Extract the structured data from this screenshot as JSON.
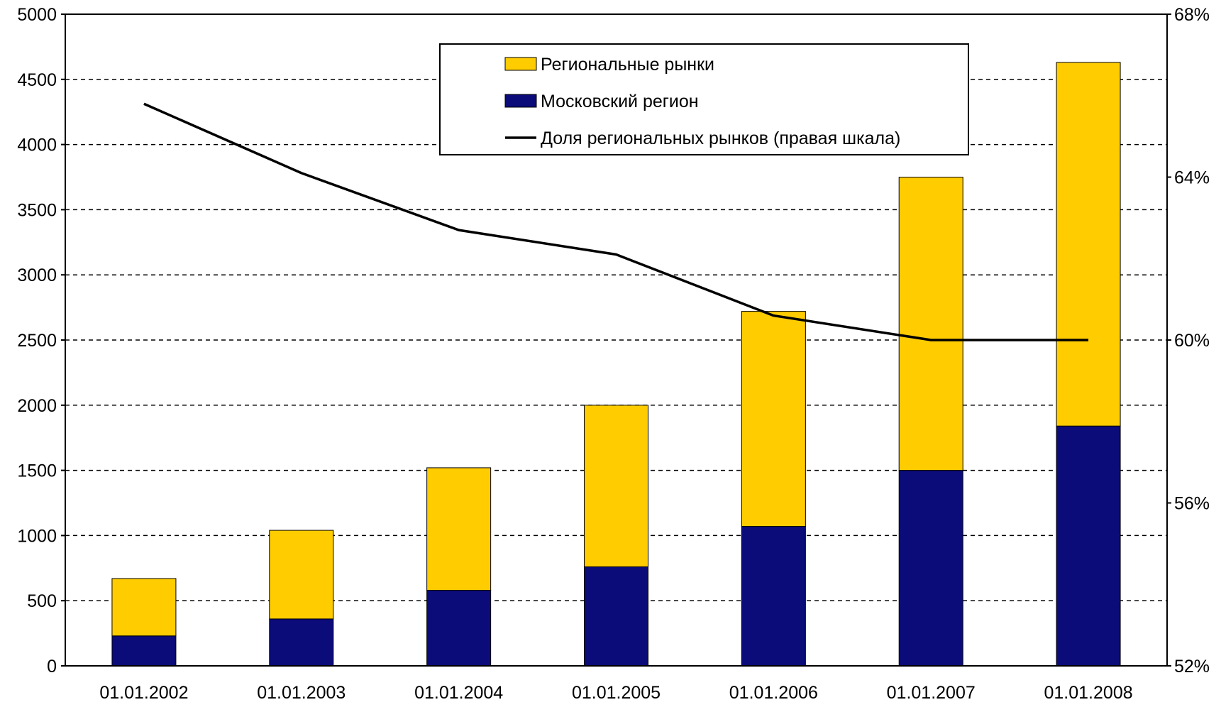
{
  "chart_data": {
    "type": "bar",
    "stacked": true,
    "categories": [
      "01.01.2002",
      "01.01.2003",
      "01.01.2004",
      "01.01.2005",
      "01.01.2006",
      "01.01.2007",
      "01.01.2008"
    ],
    "series": [
      {
        "name": "Московский регион",
        "type": "bar",
        "axis": "left",
        "color": "#0b0b7a",
        "values": [
          230,
          360,
          580,
          760,
          1070,
          1500,
          1840
        ]
      },
      {
        "name": "Региональные рынки",
        "type": "bar",
        "axis": "left",
        "color": "#ffcc00",
        "values": [
          440,
          680,
          940,
          1240,
          1650,
          2250,
          2790
        ]
      },
      {
        "name": "Доля региональных рынков (правая шкала)",
        "type": "line",
        "axis": "right",
        "color": "#000000",
        "values": [
          65.8,
          64.1,
          62.7,
          62.1,
          60.6,
          60.0,
          60.0
        ]
      }
    ],
    "legend_order": [
      "Региональные рынки",
      "Московский регион",
      "Доля региональных рынков (правая шкала)"
    ],
    "y_left": {
      "min": 0,
      "max": 5000,
      "ticks": [
        0,
        500,
        1000,
        1500,
        2000,
        2500,
        3000,
        3500,
        4000,
        4500,
        5000
      ]
    },
    "y_right": {
      "min": 52,
      "max": 68,
      "ticks": [
        52,
        56,
        60,
        64,
        68
      ],
      "tick_labels": [
        "52%",
        "56%",
        "60%",
        "64%",
        "68%"
      ]
    },
    "title": "",
    "xlabel": "",
    "ylabel": "",
    "grid": true,
    "grid_style": "dashed horizontal",
    "legend_position": "top-center"
  }
}
